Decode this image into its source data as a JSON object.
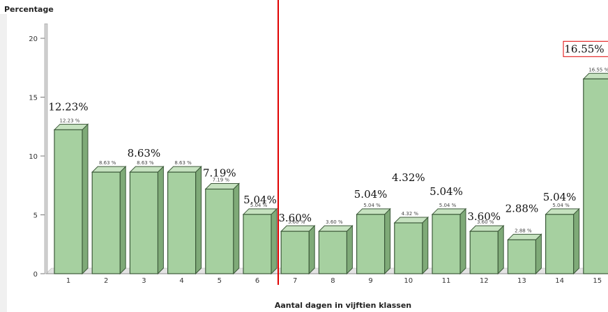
{
  "chart_data": {
    "type": "bar",
    "ylabel": "Percentage",
    "xlabel": "Aantal dagen in vijftien klassen",
    "ylim": [
      0,
      21
    ],
    "yticks": [
      0,
      5,
      10,
      15,
      20
    ],
    "categories": [
      "1",
      "2",
      "3",
      "4",
      "5",
      "6",
      "7",
      "8",
      "9",
      "10",
      "11",
      "12",
      "13",
      "14",
      "15"
    ],
    "values": [
      12.23,
      8.63,
      8.63,
      8.63,
      7.19,
      5.04,
      3.6,
      3.6,
      5.04,
      4.32,
      5.04,
      3.6,
      2.88,
      5.04,
      16.55
    ],
    "bar_labels": [
      "12.23 %",
      "8.63 %",
      "8.63 %",
      "8.63 %",
      "7.19 %",
      "5.04 %",
      "3.60 %",
      "3.60 %",
      "5.04 %",
      "4.32 %",
      "5.04 %",
      "3.60 %",
      "2.88 %",
      "5.04 %",
      "16.55 %"
    ],
    "annotations": [
      {
        "text": "12.23%",
        "category": "1",
        "value": 12.23
      },
      {
        "text": "8.63%",
        "category": "3",
        "value": 8.63
      },
      {
        "text": "7.19%",
        "category": "5",
        "value": 7.19
      },
      {
        "text": "5.04%",
        "category": "6",
        "value": 5.04
      },
      {
        "text": "3.60%",
        "category": "7",
        "value": 3.6
      },
      {
        "text": "5.04%",
        "category": "9",
        "value": 5.04
      },
      {
        "text": "4.32%",
        "category": "10",
        "value": 4.32
      },
      {
        "text": "5.04%",
        "category": "11",
        "value": 5.04
      },
      {
        "text": "3.60%",
        "category": "12",
        "value": 3.6
      },
      {
        "text": "2.88%",
        "category": "13",
        "value": 2.88
      },
      {
        "text": "5.04%",
        "category": "14",
        "value": 5.04
      },
      {
        "text": "16.55%",
        "category": "15",
        "value": 16.55,
        "boxed": true
      }
    ],
    "divider_after_category": "6",
    "grid": false,
    "colors": {
      "bar_front": "#a6d0a0",
      "bar_side": "#7faa78",
      "bar_top": "#c6e2c0",
      "bar_edge": "#3d5a3a",
      "divider": "#e00000",
      "box": "#e00000"
    }
  }
}
